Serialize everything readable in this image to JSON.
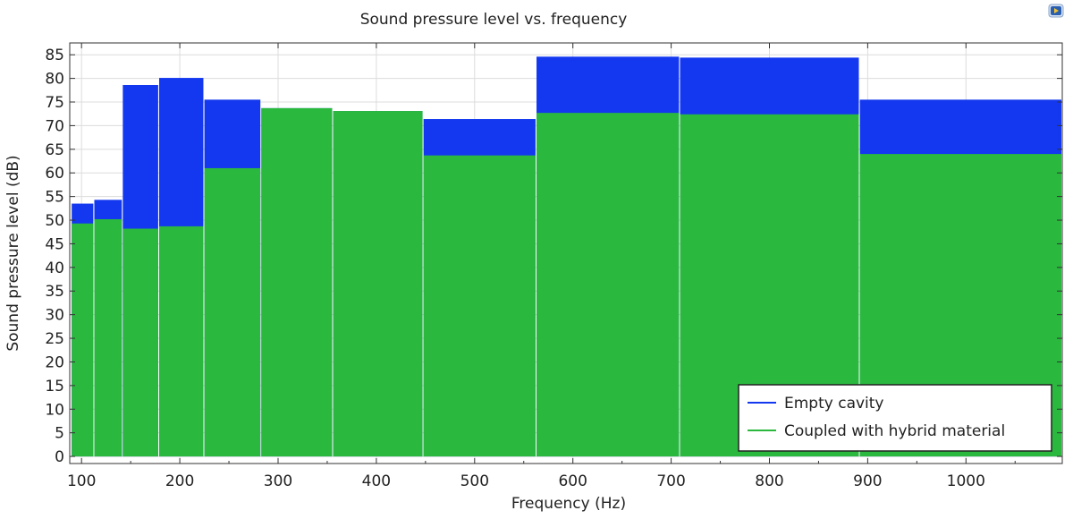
{
  "chart_data": {
    "type": "bar",
    "title": "Sound pressure level vs. frequency",
    "xlabel": "Frequency (Hz)",
    "ylabel": "Sound pressure level (dB)",
    "xlim": [
      88,
      1098
    ],
    "ylim": [
      -1.5,
      87.5
    ],
    "xticks": [
      100,
      200,
      300,
      400,
      500,
      600,
      700,
      800,
      900,
      1000
    ],
    "xtick_labels": [
      "100",
      "200",
      "300",
      "400",
      "500",
      "600",
      "700",
      "800",
      "900",
      "1000"
    ],
    "yticks": [
      0,
      5,
      10,
      15,
      20,
      25,
      30,
      35,
      40,
      45,
      50,
      55,
      60,
      65,
      70,
      75,
      80,
      85
    ],
    "ytick_labels": [
      "0",
      "5",
      "10",
      "15",
      "20",
      "25",
      "30",
      "35",
      "40",
      "45",
      "50",
      "55",
      "60",
      "65",
      "70",
      "75",
      "80",
      "85"
    ],
    "grid": true,
    "legend_position": "bottom-right",
    "bands": [
      {
        "x0": 90,
        "x1": 112
      },
      {
        "x0": 113,
        "x1": 141
      },
      {
        "x0": 142,
        "x1": 178
      },
      {
        "x0": 179,
        "x1": 224
      },
      {
        "x0": 225,
        "x1": 282
      },
      {
        "x0": 283,
        "x1": 355
      },
      {
        "x0": 356,
        "x1": 447
      },
      {
        "x0": 448,
        "x1": 562
      },
      {
        "x0": 563,
        "x1": 708
      },
      {
        "x0": 709,
        "x1": 891
      },
      {
        "x0": 892,
        "x1": 1122
      }
    ],
    "series": [
      {
        "name": "Empty cavity",
        "color": "#1338f0",
        "values": [
          53.5,
          54.3,
          78.6,
          80.1,
          75.5,
          73.7,
          73.1,
          71.4,
          84.6,
          84.4,
          75.5
        ]
      },
      {
        "name": "Coupled with hybrid material",
        "color": "#2bb83f",
        "values": [
          49.3,
          50.2,
          48.2,
          48.7,
          61.0,
          73.7,
          73.1,
          63.7,
          72.7,
          72.4,
          64.0
        ]
      }
    ]
  },
  "icons": {
    "corner": "export-icon"
  }
}
